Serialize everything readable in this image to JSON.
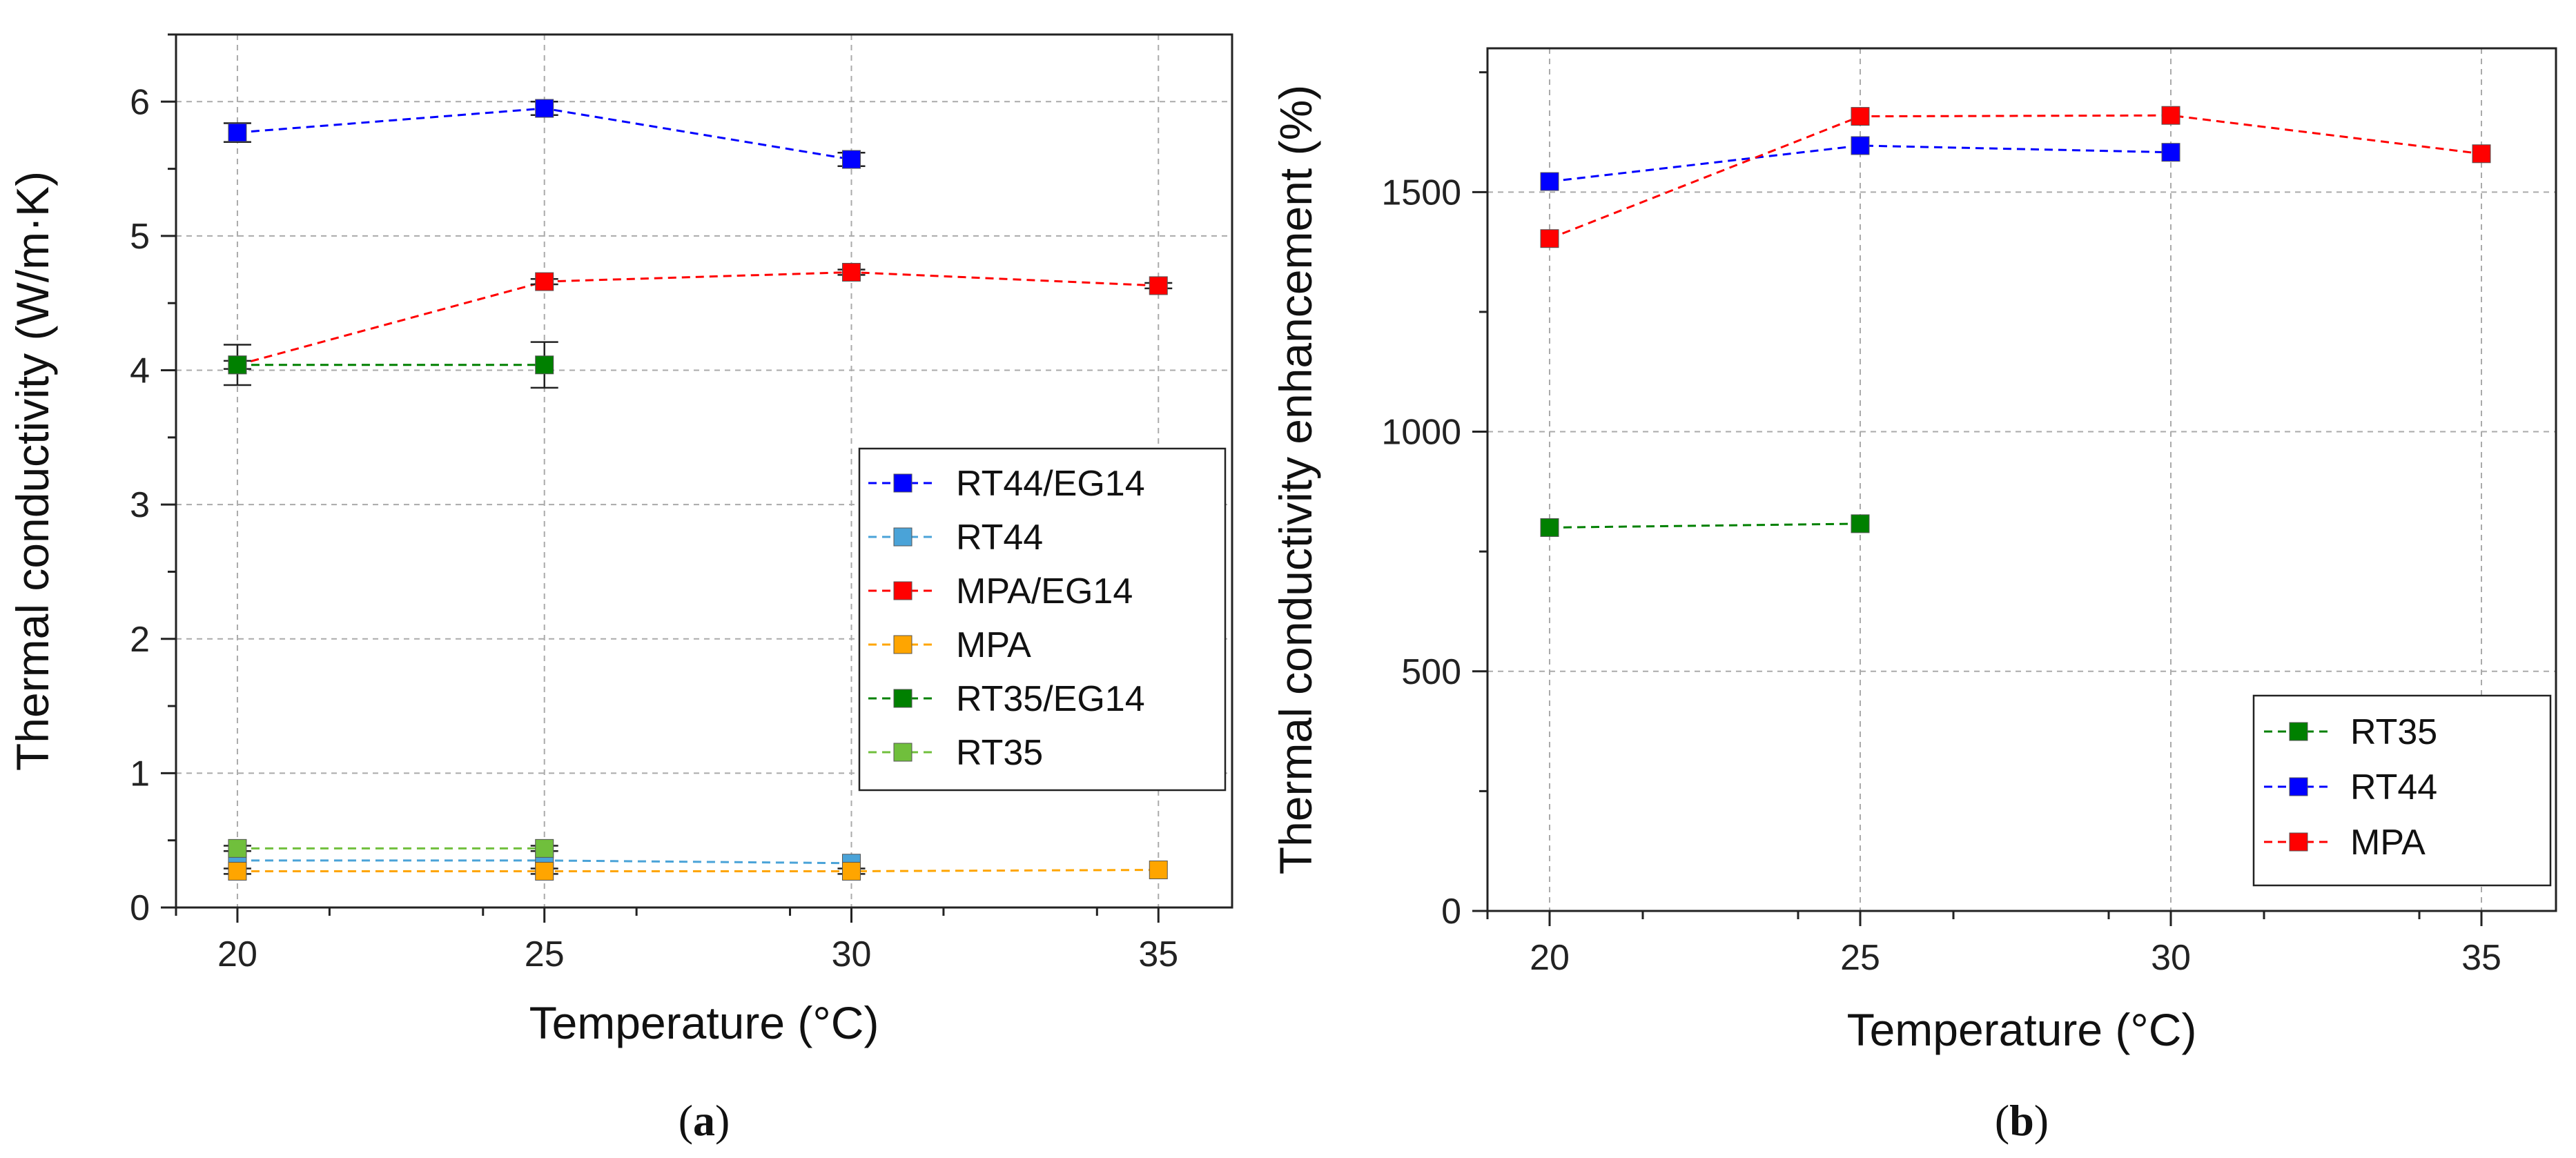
{
  "chart_data": [
    {
      "id": "a",
      "type": "line",
      "panel_label": "a",
      "xlabel": "Temperature (°C)",
      "ylabel": "Thermal conductivity (W/m·K)",
      "xlim": [
        19,
        36.2
      ],
      "ylim": [
        0,
        6.5
      ],
      "xticks": [
        20,
        25,
        30,
        35
      ],
      "yticks": [
        0,
        1,
        2,
        3,
        4,
        5,
        6
      ],
      "grid": true,
      "legend_position": "right",
      "series": [
        {
          "name": "RT44/EG14",
          "color": "#0000ff",
          "x": [
            20,
            25,
            30
          ],
          "y": [
            5.77,
            5.95,
            5.57
          ],
          "err": [
            0.07,
            0.05,
            0.05
          ]
        },
        {
          "name": "RT44",
          "color": "#4aa3d8",
          "x": [
            20,
            25,
            30
          ],
          "y": [
            0.35,
            0.35,
            0.33
          ],
          "err": [
            0,
            0,
            0
          ]
        },
        {
          "name": "MPA/EG14",
          "color": "#ff0000",
          "x": [
            20,
            25,
            30,
            35
          ],
          "y": [
            4.04,
            4.66,
            4.73,
            4.63
          ],
          "err": [
            0.15,
            0.02,
            0.02,
            0.02
          ]
        },
        {
          "name": "MPA",
          "color": "#ffa500",
          "x": [
            20,
            25,
            30,
            35
          ],
          "y": [
            0.27,
            0.27,
            0.27,
            0.28
          ],
          "err": [
            0.02,
            0.02,
            0.02,
            0
          ]
        },
        {
          "name": "RT35/EG14",
          "color": "#008000",
          "x": [
            20,
            25
          ],
          "y": [
            4.04,
            4.04
          ],
          "err": [
            0.03,
            0.17
          ]
        },
        {
          "name": "RT35",
          "color": "#70bf3c",
          "x": [
            20,
            25
          ],
          "y": [
            0.44,
            0.44
          ],
          "err": [
            0.02,
            0.02
          ]
        }
      ]
    },
    {
      "id": "b",
      "type": "line",
      "panel_label": "b",
      "xlabel": "Temperature (°C)",
      "ylabel": "Thermal conductivity enhancement (%)",
      "xlim": [
        19,
        36.2
      ],
      "ylim": [
        0,
        1800
      ],
      "xticks": [
        20,
        25,
        30,
        35
      ],
      "yticks": [
        0,
        500,
        1000,
        1500
      ],
      "grid": true,
      "legend_position": "bottom-right",
      "series": [
        {
          "name": "RT35",
          "color": "#008000",
          "x": [
            20,
            25
          ],
          "y": [
            800,
            808
          ]
        },
        {
          "name": "RT44",
          "color": "#0000ff",
          "x": [
            20,
            25,
            30
          ],
          "y": [
            1522,
            1597,
            1583
          ]
        },
        {
          "name": "MPA",
          "color": "#ff0000",
          "x": [
            20,
            25,
            30,
            35
          ],
          "y": [
            1403,
            1658,
            1660,
            1580
          ]
        }
      ]
    }
  ]
}
